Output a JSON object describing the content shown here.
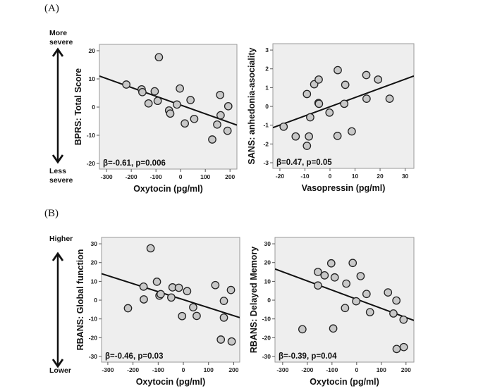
{
  "panels": {
    "A": {
      "label": "(A)",
      "arrow_top": "More\nsevere",
      "arrow_top_l1": "More",
      "arrow_top_l2": "severe",
      "arrow_bottom_l1": "Less",
      "arrow_bottom_l2": "severe"
    },
    "B": {
      "label": "(B)",
      "arrow_top_l1": "Higher",
      "arrow_bottom_l1": "Lower"
    }
  },
  "chart_data": [
    {
      "id": "A-left",
      "type": "scatter",
      "title": "",
      "xlabel": "Oxytocin (pg/ml)",
      "ylabel": "BPRS: Total Score",
      "annotation": "β=-0.61, p=0.006",
      "xlim": [
        -329,
        228
      ],
      "ylim": [
        -22,
        22.25
      ],
      "xticks": [
        -300,
        -200,
        -100,
        0,
        100,
        200
      ],
      "yticks": [
        -20,
        -10,
        0,
        10,
        20
      ],
      "grid": false,
      "points": [
        [
          -220,
          8
        ],
        [
          -158,
          6.3
        ],
        [
          -155,
          5.3
        ],
        [
          -130,
          1.3
        ],
        [
          -105,
          5.6
        ],
        [
          -93,
          2.2
        ],
        [
          -88,
          17.7
        ],
        [
          -47,
          -1.2
        ],
        [
          -42,
          -2.3
        ],
        [
          -15,
          0.9
        ],
        [
          -3,
          6.6
        ],
        [
          17,
          -5.8
        ],
        [
          40,
          2.5
        ],
        [
          55,
          -4.2
        ],
        [
          128,
          -11.5
        ],
        [
          148,
          -6.2
        ],
        [
          160,
          4.3
        ],
        [
          162,
          -2.9
        ],
        [
          190,
          -8.4
        ],
        [
          193,
          0.3
        ]
      ],
      "fit_line": {
        "x": [
          -329,
          228
        ],
        "y": [
          11.0,
          -6.4
        ]
      }
    },
    {
      "id": "A-right",
      "type": "scatter",
      "title": "",
      "xlabel": "Vasopressin (pg/ml)",
      "ylabel": "SANS: anhedonia-asociality",
      "annotation": "β=0.47, p=0.05",
      "xlim": [
        -22.8,
        33.5
      ],
      "ylim": [
        -3.3,
        3.34
      ],
      "xticks": [
        -20,
        -10,
        0,
        10,
        20,
        30
      ],
      "yticks": [
        -3,
        -2,
        -1,
        0,
        1,
        2,
        3
      ],
      "grid": false,
      "points": [
        [
          -18.5,
          -1.08
        ],
        [
          -13.7,
          -1.6
        ],
        [
          -9.2,
          0.66
        ],
        [
          -9.2,
          -2.1
        ],
        [
          -8.4,
          -1.6
        ],
        [
          -7.9,
          -0.58
        ],
        [
          -6.3,
          1.18
        ],
        [
          -4.5,
          1.43
        ],
        [
          -4.6,
          0.18
        ],
        [
          -4.4,
          0.14
        ],
        [
          -0.2,
          -0.33
        ],
        [
          3.1,
          1.93
        ],
        [
          3.0,
          -1.57
        ],
        [
          5.7,
          0.14
        ],
        [
          6.1,
          1.15
        ],
        [
          8.7,
          -1.33
        ],
        [
          14.5,
          1.67
        ],
        [
          14.6,
          0.41
        ],
        [
          19.2,
          1.43
        ],
        [
          23.8,
          0.41
        ]
      ],
      "fit_line": {
        "x": [
          -22.8,
          33.5
        ],
        "y": [
          -1.13,
          1.62
        ]
      }
    },
    {
      "id": "B-left",
      "type": "scatter",
      "title": "",
      "xlabel": "Oxytocin (pg/ml)",
      "ylabel": "RBANS: Global function",
      "annotation": "β=-0.46, p=0.03",
      "xlim": [
        -325,
        224
      ],
      "ylim": [
        -33,
        33.4
      ],
      "xticks": [
        -300,
        -200,
        -100,
        0,
        100,
        200
      ],
      "yticks": [
        -30,
        -20,
        -10,
        0,
        10,
        20,
        30
      ],
      "grid": false,
      "points": [
        [
          -220,
          -4.3
        ],
        [
          -158,
          7.2
        ],
        [
          -157,
          0.4
        ],
        [
          -130,
          27.6
        ],
        [
          -105,
          9.8
        ],
        [
          -95,
          2.4
        ],
        [
          -90,
          3.2
        ],
        [
          -48,
          1.4
        ],
        [
          -43,
          6.8
        ],
        [
          -18,
          6.6
        ],
        [
          -5,
          -8.5
        ],
        [
          15,
          4.8
        ],
        [
          39,
          -3.8
        ],
        [
          53,
          -8.4
        ],
        [
          127,
          8.0
        ],
        [
          149,
          -21
        ],
        [
          161,
          -0.4
        ],
        [
          161,
          -9.3
        ],
        [
          189,
          5.4
        ],
        [
          192,
          -22
        ]
      ],
      "fit_line": {
        "x": [
          -325,
          224
        ],
        "y": [
          14.1,
          -9.3
        ]
      }
    },
    {
      "id": "B-right",
      "type": "scatter",
      "title": "",
      "xlabel": "Oxytocin (pg/ml)",
      "ylabel": "RBANS: Delayed Memory",
      "annotation": "β=-0.39, p=0.04",
      "xlim": [
        -331,
        232
      ],
      "ylim": [
        -33,
        33.4
      ],
      "xticks": [
        -300,
        -200,
        -100,
        0,
        100,
        200
      ],
      "yticks": [
        -30,
        -20,
        -10,
        0,
        10,
        20,
        30
      ],
      "grid": false,
      "points": [
        [
          -220,
          -15.5
        ],
        [
          -157,
          15
        ],
        [
          -157,
          7.8
        ],
        [
          -130,
          13.2
        ],
        [
          -103,
          19.6
        ],
        [
          -89,
          12.1
        ],
        [
          -95,
          -15.1
        ],
        [
          -47,
          -4.2
        ],
        [
          -42,
          8.8
        ],
        [
          -16,
          19.8
        ],
        [
          -2,
          -0.6
        ],
        [
          16,
          12.8
        ],
        [
          40,
          3.3
        ],
        [
          54,
          -6.4
        ],
        [
          127,
          4.1
        ],
        [
          149,
          -7.1
        ],
        [
          161,
          -0.2
        ],
        [
          162,
          -26
        ],
        [
          190,
          -10.4
        ],
        [
          191,
          -25
        ]
      ],
      "fit_line": {
        "x": [
          -331,
          232
        ],
        "y": [
          16.6,
          -10.8
        ]
      }
    }
  ]
}
